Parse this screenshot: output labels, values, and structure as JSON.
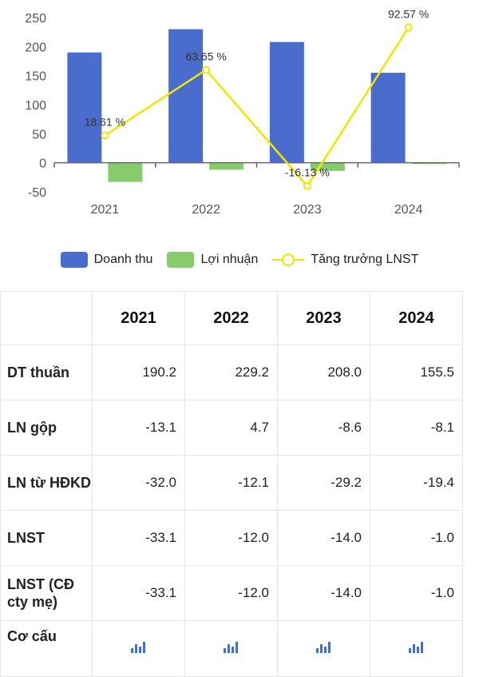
{
  "chart_data": {
    "type": "bar",
    "categories": [
      "2021",
      "2022",
      "2023",
      "2024"
    ],
    "series": [
      {
        "name": "Doanh thu",
        "kind": "bar",
        "color": "#4a6ccc",
        "values": [
          190,
          230,
          208,
          155
        ]
      },
      {
        "name": "Lợi nhuận",
        "kind": "bar",
        "color": "#86cc6c",
        "values": [
          -33,
          -12,
          -14,
          -1
        ]
      },
      {
        "name": "Tăng trưởng LNST",
        "kind": "line",
        "color": "#f1e600",
        "values": [
          47,
          160,
          -40,
          233
        ],
        "labels": [
          "18.61 %",
          "63.65 %",
          "-16.13 %",
          "92.57 %"
        ]
      }
    ],
    "yticks": [
      250,
      200,
      150,
      100,
      50,
      0,
      -50
    ],
    "ylim": [
      -50,
      250
    ],
    "legend": "bottom"
  },
  "table": {
    "years": [
      "2021",
      "2022",
      "2023",
      "2024"
    ],
    "rows": [
      {
        "label": "DT thuần",
        "values": [
          "190.2",
          "229.2",
          "208.0",
          "155.5"
        ]
      },
      {
        "label": "LN gộp",
        "values": [
          "-13.1",
          "4.7",
          "-8.6",
          "-8.1"
        ]
      },
      {
        "label": "LN từ HĐKD",
        "values": [
          "-32.0",
          "-12.1",
          "-29.2",
          "-19.4"
        ]
      },
      {
        "label": "LNST",
        "values": [
          "-33.1",
          "-12.0",
          "-14.0",
          "-1.0"
        ]
      },
      {
        "label": "LNST (CĐ cty mẹ)",
        "values": [
          "-33.1",
          "-12.0",
          "-14.0",
          "-1.0"
        ]
      }
    ],
    "last_row_label": "Cơ cấu",
    "last_row_icon": "bar-chart-icon"
  }
}
